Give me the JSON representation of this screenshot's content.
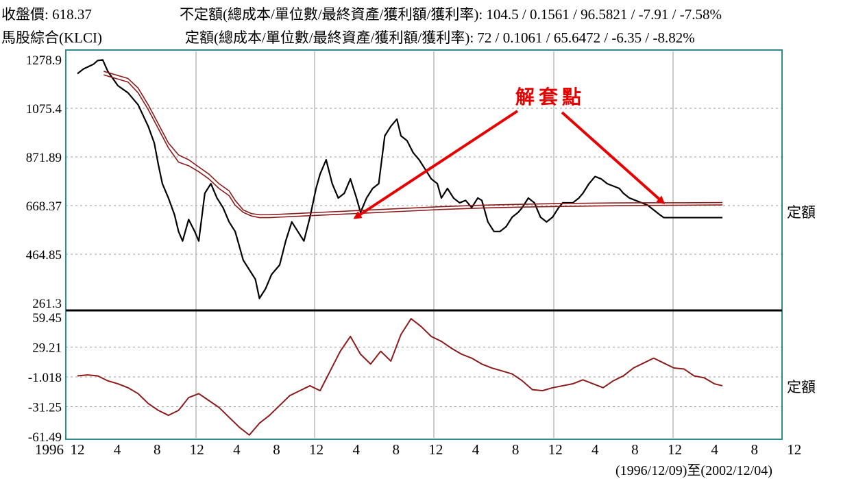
{
  "header": {
    "close_label": "收盤價:",
    "close_value": "618.37",
    "index_name": "馬股綜合(KLCI)",
    "variable_label": "不定額(總成本/單位數/最終資產/獲利額/獲利率):",
    "variable_values": "104.5 / 0.1561 / 96.5821 / -7.91 / -7.58%",
    "fixed_label": "定額(總成本/單位數/最終資產/獲利額/獲利率):",
    "fixed_values": "72 / 0.1061 / 65.6472 / -6.35 / -8.82%"
  },
  "annotation": "解套點",
  "side_labels": {
    "upper": "定額",
    "lower": "定額"
  },
  "range_text": "(1996/12/09)至(2002/12/04)",
  "colors": {
    "index_line": "#000000",
    "cost_line": "#8b1a1a",
    "frame": "#2e8b8b",
    "grid": "#9a9a9a",
    "annotation": "#e60000",
    "axis_line": "#000000"
  },
  "chart_data": [
    {
      "type": "line",
      "title": "",
      "y_ticks": [
        "1278.9",
        "1075.4",
        "871.89",
        "668.37",
        "464.85",
        "261.3"
      ],
      "ylim": [
        261.3,
        1278.9
      ],
      "x_tick_labels": [
        "1996",
        "12",
        "4",
        "8",
        "12",
        "4",
        "8",
        "12",
        "4",
        "8",
        "12",
        "4",
        "8",
        "12",
        "4",
        "8",
        "12",
        "4",
        "8",
        "12"
      ],
      "x_range": [
        "1996/12/09",
        "2002/12/04"
      ],
      "series": [
        {
          "role": "index",
          "x": [
            0,
            0.3,
            0.8,
            1.0,
            1.25,
            1.5,
            2.0,
            2.5,
            3.0,
            3.5,
            3.8,
            4.0,
            4.2,
            4.5,
            4.8,
            5.0,
            5.2,
            5.5,
            5.8,
            6.0,
            6.3,
            6.6,
            6.9,
            7.2,
            7.5,
            7.8,
            8.0,
            8.2,
            8.5,
            8.8,
            9.0,
            9.3,
            9.6,
            10.0,
            10.3,
            10.6,
            10.9,
            11.2,
            11.5,
            11.8,
            12.0,
            12.3,
            12.6,
            12.9,
            13.2,
            13.5,
            13.8,
            14.0,
            14.3,
            14.6,
            14.9,
            15.2,
            15.5,
            15.8,
            16.0,
            16.3,
            16.6,
            16.9,
            17.2,
            17.5,
            17.8,
            18.0,
            18.3,
            18.6,
            18.9,
            19.2,
            19.5,
            19.8,
            20.0,
            20.3,
            20.6,
            20.9,
            21.2,
            21.5,
            21.8,
            22.0,
            22.3,
            22.6,
            22.9,
            23.2,
            23.5,
            23.8,
            24.0,
            24.3,
            24.5,
            24.8,
            25.0,
            25.3,
            25.6,
            25.9,
            26.2,
            26.5,
            26.8,
            27.0,
            27.3,
            27.6,
            27.9,
            28.2,
            28.5,
            28.8,
            29.0,
            29.3,
            29.6,
            29.9,
            30.2,
            30.5,
            30.8,
            31.1,
            31.4,
            31.7,
            31.9
          ],
          "values": [
            1220,
            1240,
            1260,
            1275,
            1278,
            1230,
            1170,
            1140,
            1090,
            1000,
            930,
            840,
            760,
            700,
            630,
            560,
            520,
            610,
            560,
            520,
            720,
            760,
            700,
            660,
            600,
            560,
            500,
            440,
            400,
            360,
            280,
            320,
            380,
            420,
            520,
            600,
            560,
            520,
            620,
            740,
            800,
            860,
            760,
            700,
            720,
            780,
            700,
            640,
            700,
            740,
            760,
            960,
            1000,
            1030,
            960,
            940,
            890,
            860,
            820,
            780,
            760,
            700,
            740,
            700,
            680,
            690,
            660,
            700,
            690,
            600,
            560,
            560,
            580,
            620,
            640,
            660,
            700,
            680,
            620,
            600,
            620,
            660,
            680,
            680,
            680,
            700,
            720,
            760,
            790,
            780,
            760,
            750,
            740,
            720,
            700,
            690,
            680,
            670,
            650,
            630,
            618,
            618,
            618,
            618,
            618,
            618,
            618,
            618,
            618,
            618,
            618
          ]
        },
        {
          "role": "variable_cost",
          "x": [
            1.3,
            2.5,
            3.0,
            3.5,
            4.0,
            4.5,
            5.0,
            5.5,
            6.0,
            6.5,
            7.0,
            7.5,
            7.8,
            8.2,
            8.6,
            9.0,
            9.5,
            10.0,
            11.0,
            12.0,
            14.0,
            16.0,
            18.0,
            20.0,
            22.0,
            24.0,
            26.0,
            28.0,
            30.0,
            31.9
          ],
          "values": [
            1230,
            1200,
            1160,
            1090,
            1010,
            930,
            880,
            860,
            830,
            800,
            760,
            730,
            690,
            650,
            635,
            630,
            630,
            632,
            636,
            640,
            648,
            656,
            664,
            670,
            674,
            677,
            679,
            680,
            680,
            681
          ]
        },
        {
          "role": "fixed_cost",
          "x": [
            1.3,
            2.5,
            3.0,
            3.5,
            4.0,
            4.5,
            5.0,
            5.5,
            6.0,
            6.5,
            7.0,
            7.5,
            7.8,
            8.2,
            8.6,
            9.0,
            9.5,
            10.0,
            11.0,
            12.0,
            14.0,
            16.0,
            18.0,
            20.0,
            22.0,
            24.0,
            26.0,
            28.0,
            30.0,
            31.9
          ],
          "values": [
            1215,
            1185,
            1140,
            1070,
            990,
            910,
            850,
            835,
            810,
            780,
            740,
            710,
            670,
            640,
            625,
            618,
            618,
            620,
            624,
            628,
            636,
            644,
            652,
            658,
            662,
            665,
            667,
            669,
            670,
            671
          ]
        }
      ]
    },
    {
      "type": "line",
      "title": "",
      "y_ticks": [
        "59.45",
        "29.21",
        "-1.018",
        "-31.25",
        "-61.49"
      ],
      "ylim": [
        -61.49,
        59.45
      ],
      "series": [
        {
          "role": "profit",
          "x": [
            0,
            0.5,
            1.0,
            1.5,
            2.0,
            2.5,
            3.0,
            3.5,
            4.0,
            4.5,
            5.0,
            5.5,
            6.0,
            6.5,
            7.0,
            7.5,
            8.0,
            8.5,
            9.0,
            9.5,
            10.0,
            10.5,
            11.0,
            11.5,
            12.0,
            12.5,
            13.0,
            13.5,
            14.0,
            14.5,
            15.0,
            15.5,
            16.0,
            16.5,
            17.0,
            17.5,
            18.0,
            18.5,
            19.0,
            19.5,
            20.0,
            20.5,
            21.0,
            21.5,
            22.0,
            22.5,
            23.0,
            23.5,
            24.0,
            24.5,
            25.0,
            25.5,
            26.0,
            26.5,
            27.0,
            27.5,
            28.0,
            28.5,
            29.0,
            29.5,
            30.0,
            30.5,
            31.0,
            31.5,
            31.9
          ],
          "values": [
            0,
            1,
            0,
            -5,
            -8,
            -12,
            -18,
            -28,
            -35,
            -40,
            -35,
            -22,
            -18,
            -25,
            -32,
            -42,
            -52,
            -60,
            -48,
            -40,
            -30,
            -20,
            -15,
            -10,
            -15,
            5,
            25,
            40,
            22,
            12,
            25,
            15,
            42,
            58,
            50,
            40,
            35,
            28,
            22,
            18,
            12,
            8,
            5,
            2,
            -5,
            -14,
            -15,
            -12,
            -10,
            -8,
            -4,
            -8,
            -12,
            -5,
            0,
            8,
            13,
            18,
            13,
            8,
            7,
            0,
            -2,
            -8,
            -10
          ]
        }
      ]
    }
  ]
}
